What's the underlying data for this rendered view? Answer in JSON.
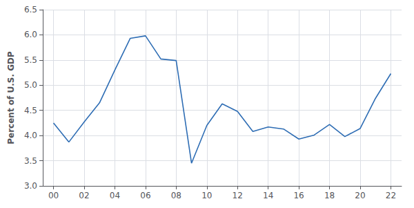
{
  "chart_data": {
    "type": "line",
    "ylabel": "Percent of U.S. GDP",
    "x": [
      2000,
      2001,
      2002,
      2003,
      2004,
      2005,
      2006,
      2007,
      2008,
      2009,
      2010,
      2011,
      2012,
      2013,
      2014,
      2015,
      2016,
      2017,
      2018,
      2019,
      2020,
      2021,
      2022
    ],
    "values": [
      4.25,
      3.87,
      4.27,
      4.65,
      5.3,
      5.93,
      5.98,
      5.52,
      5.49,
      3.45,
      4.2,
      4.63,
      4.48,
      4.08,
      4.17,
      4.13,
      3.93,
      4.01,
      4.22,
      3.98,
      4.14,
      4.74,
      5.23
    ],
    "color": "#2E6DB4",
    "xlim": [
      1999.3,
      2022.7
    ],
    "xticks": [
      {
        "value": 2000,
        "label": "00"
      },
      {
        "value": 2002,
        "label": "02"
      },
      {
        "value": 2004,
        "label": "04"
      },
      {
        "value": 2006,
        "label": "06"
      },
      {
        "value": 2008,
        "label": "08"
      },
      {
        "value": 2010,
        "label": "10"
      },
      {
        "value": 2012,
        "label": "12"
      },
      {
        "value": 2014,
        "label": "14"
      },
      {
        "value": 2016,
        "label": "16"
      },
      {
        "value": 2018,
        "label": "18"
      },
      {
        "value": 2020,
        "label": "20"
      },
      {
        "value": 2022,
        "label": "22"
      }
    ],
    "ylim": [
      3.0,
      6.5
    ],
    "yticks": [
      {
        "value": 3,
        "label": "3.0"
      },
      3.5,
      {
        "value": 4,
        "label": "4.0"
      },
      4.5,
      {
        "value": 5,
        "label": "5.0"
      },
      5.5,
      {
        "value": 6,
        "label": "6.0"
      },
      6.5
    ],
    "grid": true
  }
}
